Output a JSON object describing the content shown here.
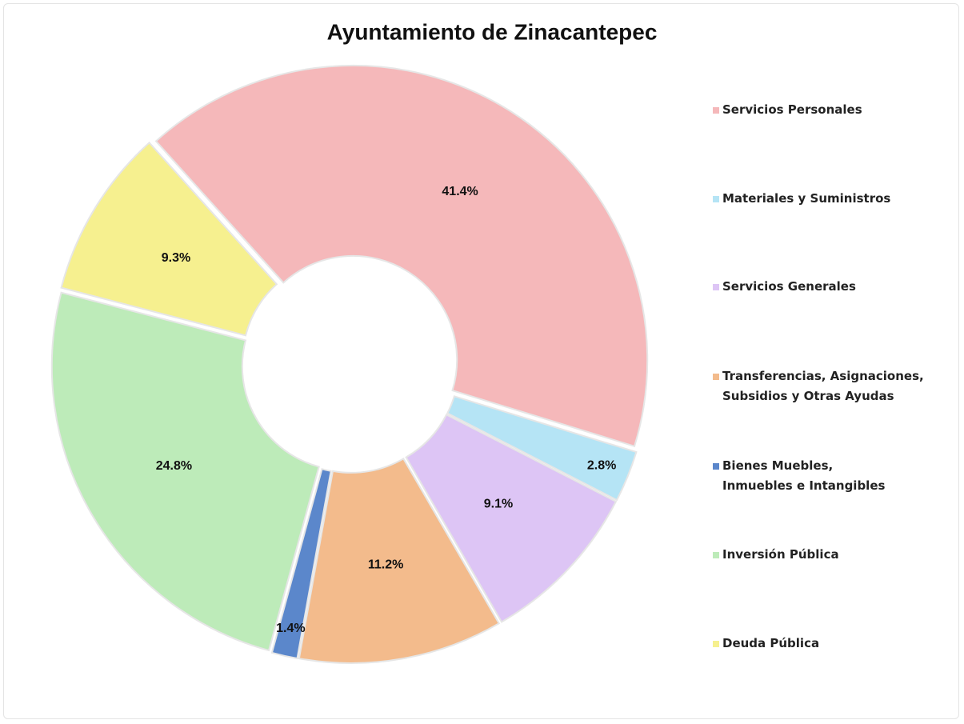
{
  "chart_data": {
    "type": "donut",
    "title": "Ayuntamiento de Zinacantepec",
    "categories": [
      "Servicios Personales",
      "Materiales y Suministros",
      "Servicios Generales",
      "Transferencias, Asignaciones, Subsidios y Otras Ayudas",
      "Bienes Muebles, Inmuebles e Intangibles",
      "Inversión Pública",
      "Deuda Pública"
    ],
    "values": [
      41.4,
      2.8,
      9.1,
      11.2,
      1.4,
      24.8,
      9.3
    ],
    "value_labels": [
      "41.4%",
      "2.8%",
      "9.1%",
      "11.2%",
      "1.4%",
      "24.8%",
      "9.3%"
    ],
    "colors": [
      "#f5b8ba",
      "#b5e4f5",
      "#ddc5f5",
      "#f3bb8c",
      "#5b87cb",
      "#bdebb9",
      "#f6f08f"
    ],
    "legend": "right"
  }
}
